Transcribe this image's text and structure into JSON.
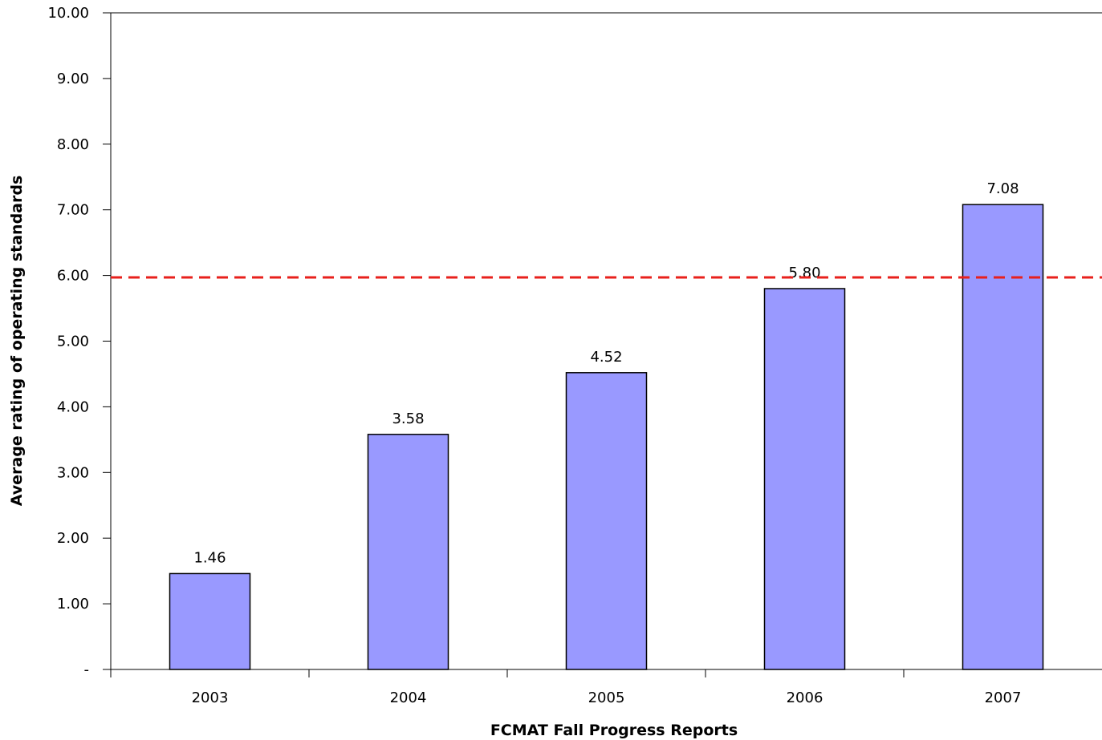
{
  "chart_data": {
    "type": "bar",
    "categories": [
      "2003",
      "2004",
      "2005",
      "2006",
      "2007"
    ],
    "values": [
      1.46,
      3.58,
      4.52,
      5.8,
      7.08
    ],
    "data_labels": [
      "1.46",
      "3.58",
      "4.52",
      "5.80",
      "7.08"
    ],
    "title": "",
    "xlabel": "FCMAT Fall Progress Reports",
    "ylabel": "Average rating of operating standards",
    "ylim": [
      0,
      10
    ],
    "y_ticks": [
      0,
      1,
      2,
      3,
      4,
      5,
      6,
      7,
      8,
      9,
      10
    ],
    "y_tick_labels": [
      "-",
      "1.00",
      "2.00",
      "3.00",
      "4.00",
      "5.00",
      "6.00",
      "7.00",
      "8.00",
      "9.00",
      "10.00"
    ],
    "reference_line": {
      "value": 5.97,
      "style": "dashed",
      "color": "#e8201c"
    },
    "bar_color": "#9999ff",
    "bar_edge_color": "#000000",
    "grid": false,
    "legend": "none"
  }
}
